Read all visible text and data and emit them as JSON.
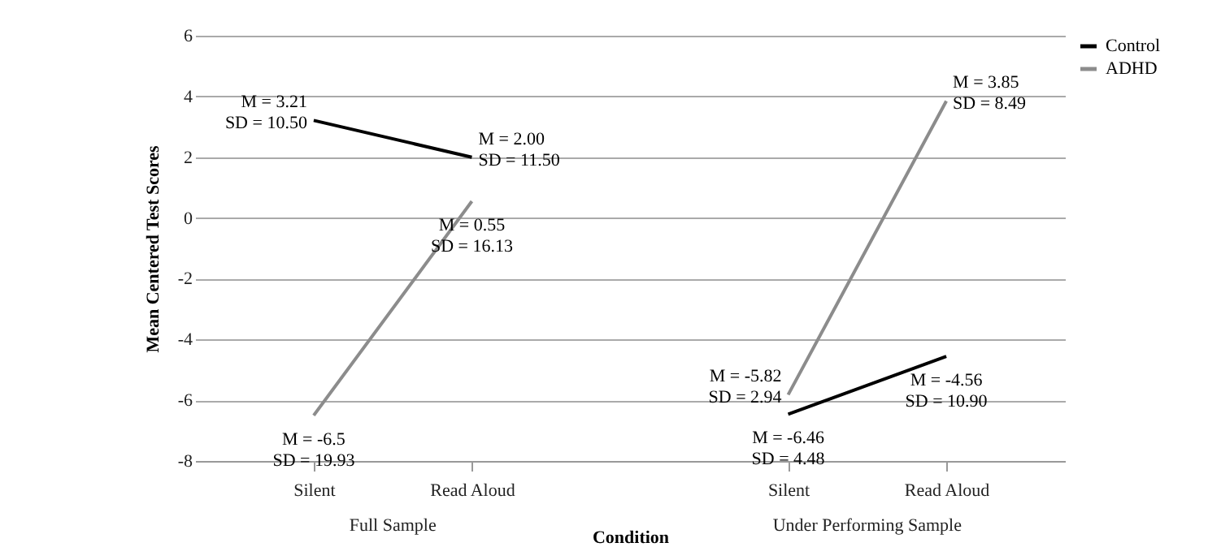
{
  "chart_data": {
    "type": "line",
    "ylabel": "Mean Centered Test Scores",
    "xlabel": "Condition",
    "categories": [
      "Silent",
      "Read Aloud",
      null,
      "Silent",
      "Read Aloud"
    ],
    "series": [
      {
        "name": "Control",
        "color": "#000000",
        "values": [
          3.21,
          2.0,
          null,
          -6.46,
          -4.56
        ]
      },
      {
        "name": "ADHD",
        "color": "#8c8c8c",
        "values": [
          -6.5,
          0.55,
          null,
          -5.82,
          3.85
        ]
      }
    ],
    "ylim": [
      -8,
      6
    ],
    "yticks": [
      -8,
      -6,
      -4,
      -2,
      0,
      2,
      4,
      6
    ],
    "grid": "y",
    "legend": "right",
    "marker": "none",
    "line_style": "solid",
    "annotations": [
      {
        "text": "M = 3.21\nSD = 10.50",
        "x": "Silent",
        "y": 3.21
      },
      {
        "text": "M = 2.00\nSD = 11.50",
        "x": "Read Aloud",
        "y": 2.0
      },
      {
        "text": "M = -6.5\nSD = 19.93",
        "x": "Silent",
        "y": -6.5
      },
      {
        "text": "M = 0.55\nSD = 16.13",
        "x": "Read Aloud",
        "y": 0.55
      },
      "M = -6.46\nSD = 4.48",
      "M = -4.56\nSD = 10.90",
      "M = -5.82\nSD = 2.94",
      "M = 3.85\nSD = 8.49",
      "Full Sample",
      "Under Performing Sample"
    ]
  }
}
